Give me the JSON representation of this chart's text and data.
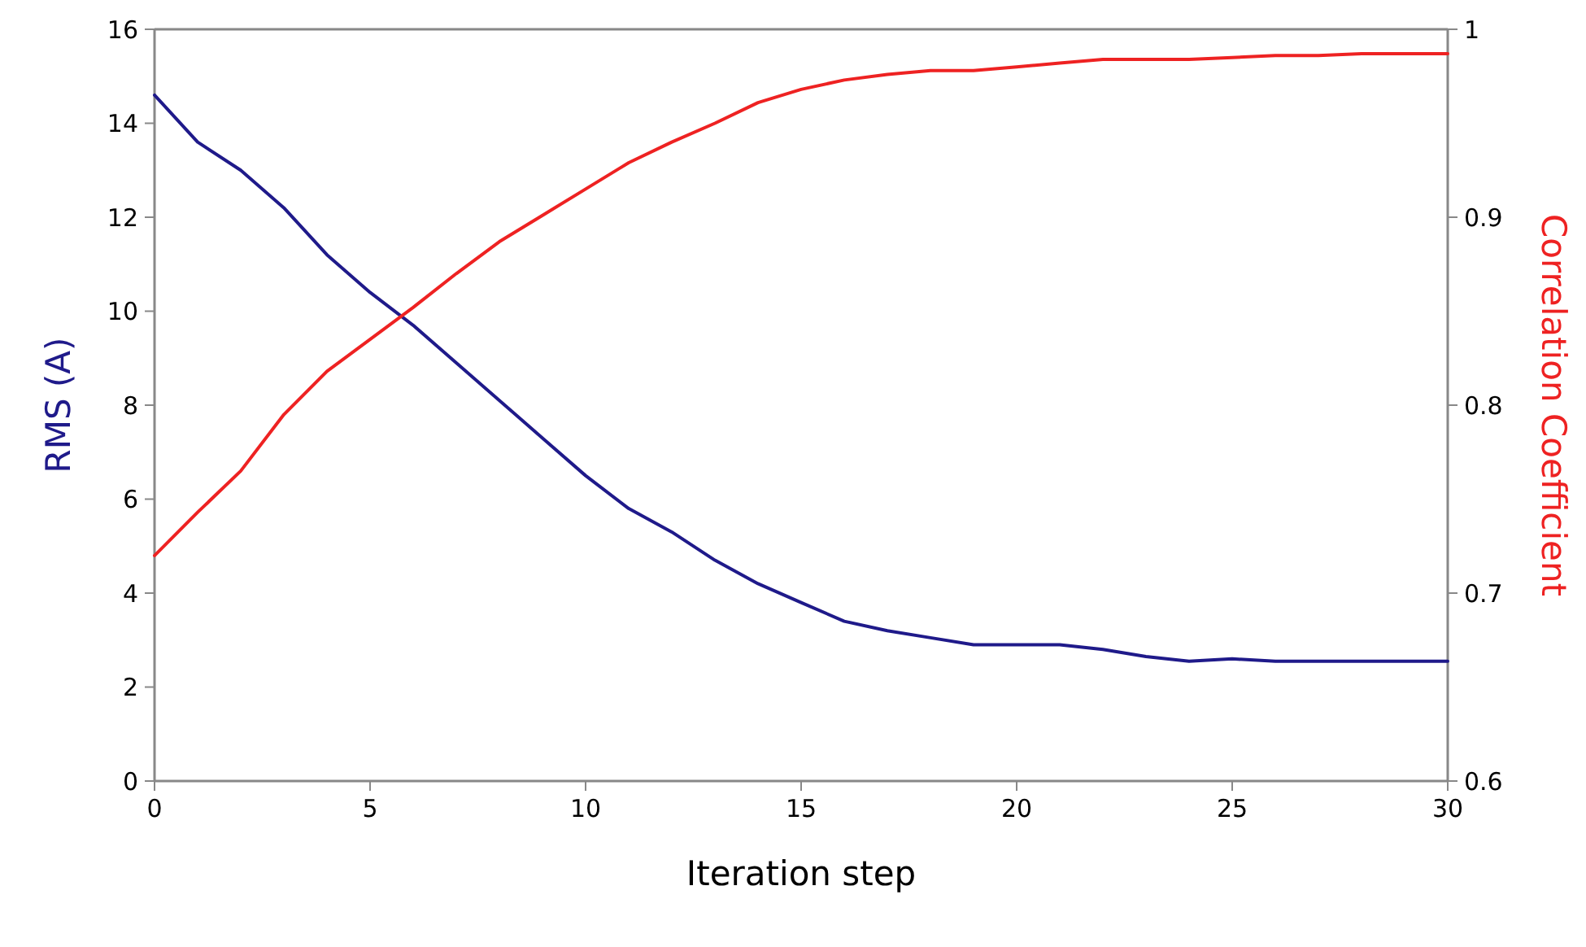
{
  "chart_data": {
    "type": "line",
    "xlabel": "Iteration step",
    "ylabel": "RMS (A)",
    "y2label": "Correlation Coefficient",
    "x": [
      0,
      1,
      2,
      3,
      4,
      5,
      6,
      7,
      8,
      9,
      10,
      11,
      12,
      13,
      14,
      15,
      16,
      17,
      18,
      19,
      20,
      21,
      22,
      23,
      24,
      25,
      26,
      27,
      28,
      29,
      30
    ],
    "series": [
      {
        "color": "#1f1a8a",
        "values": [
          14.6,
          13.6,
          13.0,
          12.2,
          11.2,
          10.4,
          9.7,
          8.9,
          8.1,
          7.3,
          6.5,
          5.8,
          5.3,
          4.7,
          4.2,
          3.8,
          3.4,
          3.2,
          3.05,
          2.9,
          2.9,
          2.9,
          2.8,
          2.65,
          2.55,
          2.6,
          2.55,
          2.55,
          2.55,
          2.55,
          2.55
        ]
      },
      {
        "color": "#ee2222",
        "axis": "y2",
        "values": [
          0.72,
          0.743,
          0.765,
          0.795,
          0.818,
          0.835,
          0.852,
          0.87,
          0.887,
          0.901,
          0.915,
          0.929,
          0.94,
          0.95,
          0.961,
          0.968,
          0.973,
          0.976,
          0.978,
          0.978,
          0.98,
          0.982,
          0.984,
          0.984,
          0.984,
          0.985,
          0.986,
          0.986,
          0.987,
          0.987,
          0.987
        ]
      }
    ],
    "xlim": [
      0,
      30
    ],
    "xticks": [
      0,
      5,
      10,
      15,
      20,
      25,
      30
    ],
    "ylim": [
      0,
      16
    ],
    "yticks": [
      0,
      2,
      4,
      6,
      8,
      10,
      12,
      14,
      16
    ],
    "y2lim": [
      0.6,
      1
    ],
    "y2ticks": [
      0.6,
      0.7,
      0.8,
      0.9,
      1
    ],
    "grid": false,
    "marker": "none",
    "line_style": "solid"
  }
}
